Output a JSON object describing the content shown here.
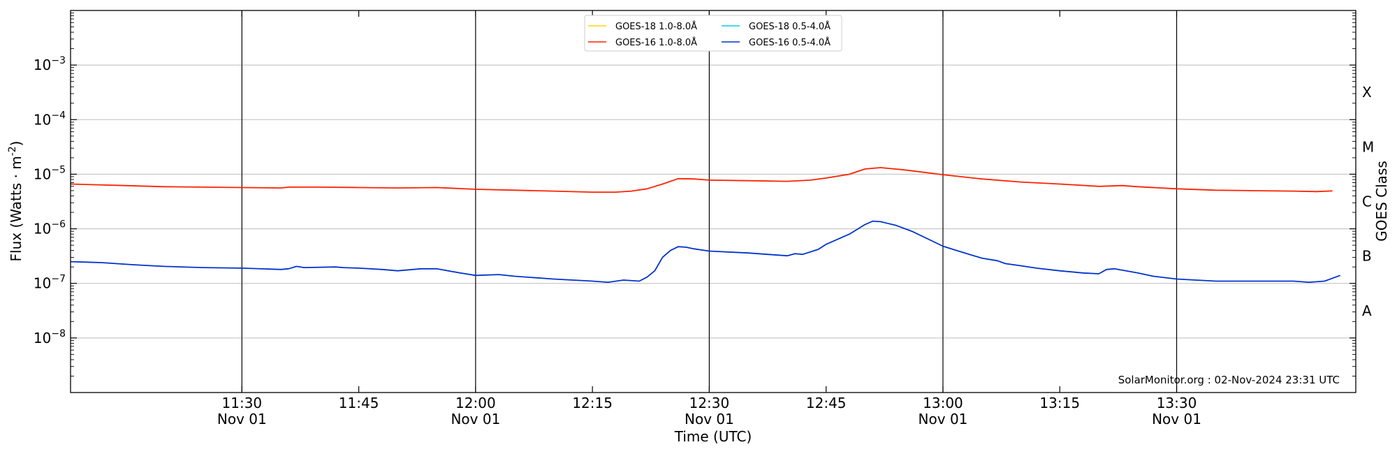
{
  "chart_data": {
    "type": "line",
    "xlabel": "Time (UTC)",
    "ylabel": "Flux (Watts · m",
    "ylabel_sup": "-2",
    "ylabel_end": ")",
    "y2label": "GOES Class",
    "yscale": "log",
    "ylim": [
      1e-09,
      0.01
    ],
    "xlim": [
      "11:08",
      "13:53"
    ],
    "y_ticks": [
      {
        "value": 1e-08,
        "base": "10",
        "exp": "−8"
      },
      {
        "value": 1e-07,
        "base": "10",
        "exp": "−7"
      },
      {
        "value": 1e-06,
        "base": "10",
        "exp": "−6"
      },
      {
        "value": 1e-05,
        "base": "10",
        "exp": "−5"
      },
      {
        "value": 0.0001,
        "base": "10",
        "exp": "−4"
      },
      {
        "value": 0.001,
        "base": "10",
        "exp": "−3"
      }
    ],
    "x_ticks": [
      {
        "time": "11:30",
        "label": "11:30",
        "sub": "Nov 01",
        "major": true
      },
      {
        "time": "11:45",
        "label": "11:45",
        "sub": "",
        "major": false
      },
      {
        "time": "12:00",
        "label": "12:00",
        "sub": "Nov 01",
        "major": true
      },
      {
        "time": "12:15",
        "label": "12:15",
        "sub": "",
        "major": false
      },
      {
        "time": "12:30",
        "label": "12:30",
        "sub": "Nov 01",
        "major": true
      },
      {
        "time": "12:45",
        "label": "12:45",
        "sub": "",
        "major": false
      },
      {
        "time": "13:00",
        "label": "13:00",
        "sub": "Nov 01",
        "major": true
      },
      {
        "time": "13:15",
        "label": "13:15",
        "sub": "",
        "major": false
      },
      {
        "time": "13:30",
        "label": "13:30",
        "sub": "Nov 01",
        "major": true
      }
    ],
    "goes_classes": [
      {
        "label": "X",
        "low": 0.0001
      },
      {
        "label": "M",
        "low": 1e-05
      },
      {
        "label": "C",
        "low": 1e-06
      },
      {
        "label": "B",
        "low": 1e-07
      },
      {
        "label": "A",
        "low": 1e-08
      }
    ],
    "credit": "SolarMonitor.org : 02-Nov-2024 23:31 UTC",
    "legend_position": "top-center",
    "grid": "horizontal at decades",
    "series": [
      {
        "name": "GOES-18 1.0-8.0Å",
        "color": "#ffd700",
        "points": []
      },
      {
        "name": "GOES-16 1.0-8.0Å",
        "color": "#ff2200",
        "points": [
          [
            "11:08",
            6.6e-06
          ],
          [
            "11:15",
            6.2e-06
          ],
          [
            "11:20",
            5.9e-06
          ],
          [
            "11:30",
            5.7e-06
          ],
          [
            "11:35",
            5.6e-06
          ],
          [
            "11:36",
            5.8e-06
          ],
          [
            "11:40",
            5.8e-06
          ],
          [
            "11:45",
            5.7e-06
          ],
          [
            "11:50",
            5.6e-06
          ],
          [
            "11:55",
            5.7e-06
          ],
          [
            "12:00",
            5.3e-06
          ],
          [
            "12:05",
            5.1e-06
          ],
          [
            "12:10",
            4.9e-06
          ],
          [
            "12:15",
            4.7e-06
          ],
          [
            "12:18",
            4.7e-06
          ],
          [
            "12:20",
            4.9e-06
          ],
          [
            "12:22",
            5.4e-06
          ],
          [
            "12:24",
            6.6e-06
          ],
          [
            "12:26",
            8.3e-06
          ],
          [
            "12:28",
            8.2e-06
          ],
          [
            "12:30",
            7.8e-06
          ],
          [
            "12:35",
            7.6e-06
          ],
          [
            "12:40",
            7.4e-06
          ],
          [
            "12:43",
            7.8e-06
          ],
          [
            "12:45",
            8.5e-06
          ],
          [
            "12:48",
            1e-05
          ],
          [
            "12:50",
            1.25e-05
          ],
          [
            "12:52",
            1.32e-05
          ],
          [
            "12:55",
            1.2e-05
          ],
          [
            "13:00",
            9.8e-06
          ],
          [
            "13:05",
            8.2e-06
          ],
          [
            "13:10",
            7.2e-06
          ],
          [
            "13:15",
            6.6e-06
          ],
          [
            "13:20",
            6e-06
          ],
          [
            "13:23",
            6.2e-06
          ],
          [
            "13:25",
            5.9e-06
          ],
          [
            "13:30",
            5.4e-06
          ],
          [
            "13:35",
            5.1e-06
          ],
          [
            "13:40",
            5e-06
          ],
          [
            "13:45",
            4.9e-06
          ],
          [
            "13:48",
            4.8e-06
          ],
          [
            "13:50",
            4.95e-06
          ]
        ]
      },
      {
        "name": "GOES-18 0.5-4.0Å",
        "color": "#00d0e6",
        "points": []
      },
      {
        "name": "GOES-16 0.5-4.0Å",
        "color": "#0033cc",
        "points": [
          [
            "11:08",
            2.5e-07
          ],
          [
            "11:12",
            2.4e-07
          ],
          [
            "11:16",
            2.2e-07
          ],
          [
            "11:20",
            2.05e-07
          ],
          [
            "11:25",
            1.95e-07
          ],
          [
            "11:30",
            1.9e-07
          ],
          [
            "11:35",
            1.8e-07
          ],
          [
            "11:36",
            1.85e-07
          ],
          [
            "11:37",
            2.05e-07
          ],
          [
            "11:38",
            1.95e-07
          ],
          [
            "11:42",
            2e-07
          ],
          [
            "11:43",
            1.95e-07
          ],
          [
            "11:45",
            1.9e-07
          ],
          [
            "11:48",
            1.8e-07
          ],
          [
            "11:50",
            1.7e-07
          ],
          [
            "11:53",
            1.85e-07
          ],
          [
            "11:55",
            1.85e-07
          ],
          [
            "11:58",
            1.55e-07
          ],
          [
            "12:00",
            1.4e-07
          ],
          [
            "12:03",
            1.45e-07
          ],
          [
            "12:05",
            1.35e-07
          ],
          [
            "12:10",
            1.2e-07
          ],
          [
            "12:15",
            1.1e-07
          ],
          [
            "12:17",
            1.05e-07
          ],
          [
            "12:19",
            1.15e-07
          ],
          [
            "12:21",
            1.1e-07
          ],
          [
            "12:22",
            1.3e-07
          ],
          [
            "12:23",
            1.7e-07
          ],
          [
            "12:24",
            3e-07
          ],
          [
            "12:25",
            4e-07
          ],
          [
            "12:26",
            4.7e-07
          ],
          [
            "12:27",
            4.6e-07
          ],
          [
            "12:28",
            4.3e-07
          ],
          [
            "12:30",
            3.9e-07
          ],
          [
            "12:35",
            3.6e-07
          ],
          [
            "12:40",
            3.2e-07
          ],
          [
            "12:41",
            3.5e-07
          ],
          [
            "12:42",
            3.4e-07
          ],
          [
            "12:44",
            4.2e-07
          ],
          [
            "12:45",
            5.2e-07
          ],
          [
            "12:48",
            8e-07
          ],
          [
            "12:50",
            1.2e-06
          ],
          [
            "12:51",
            1.38e-06
          ],
          [
            "12:52",
            1.35e-06
          ],
          [
            "12:54",
            1.15e-06
          ],
          [
            "12:56",
            9e-07
          ],
          [
            "13:00",
            4.8e-07
          ],
          [
            "13:02",
            3.9e-07
          ],
          [
            "13:05",
            2.9e-07
          ],
          [
            "13:07",
            2.6e-07
          ],
          [
            "13:08",
            2.3e-07
          ],
          [
            "13:10",
            2.1e-07
          ],
          [
            "13:12",
            1.9e-07
          ],
          [
            "13:15",
            1.7e-07
          ],
          [
            "13:18",
            1.55e-07
          ],
          [
            "13:20",
            1.5e-07
          ],
          [
            "13:21",
            1.8e-07
          ],
          [
            "13:22",
            1.85e-07
          ],
          [
            "13:25",
            1.55e-07
          ],
          [
            "13:27",
            1.35e-07
          ],
          [
            "13:30",
            1.2e-07
          ],
          [
            "13:35",
            1.1e-07
          ],
          [
            "13:40",
            1.1e-07
          ],
          [
            "13:45",
            1.1e-07
          ],
          [
            "13:47",
            1.05e-07
          ],
          [
            "13:49",
            1.1e-07
          ],
          [
            "13:51",
            1.4e-07
          ]
        ]
      }
    ]
  }
}
